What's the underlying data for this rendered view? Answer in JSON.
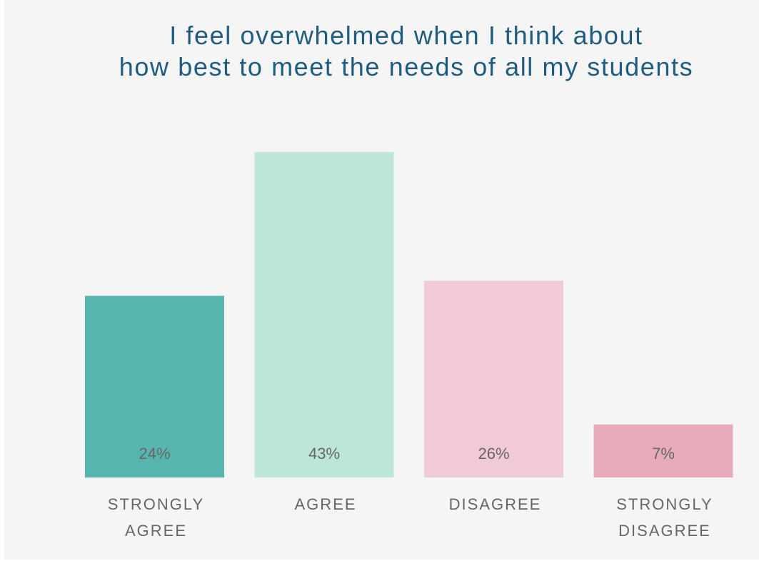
{
  "chart_data": {
    "type": "bar",
    "title_lines": [
      "I feel overwhelmed when I think about",
      "how best to meet the needs of all my students"
    ],
    "categories": [
      "STRONGLY\nAGREE",
      "AGREE",
      "DISAGREE",
      "STRONGLY\nDISAGREE"
    ],
    "values": [
      24,
      43,
      26,
      7
    ],
    "value_labels": [
      "24%",
      "43%",
      "26%",
      "7%"
    ],
    "unit": "%",
    "colors": [
      "#57b5b0",
      "#bde5d8",
      "#f0cbd6",
      "#e7aab9"
    ],
    "label_color": "#666666",
    "title_color": "#1f5c80",
    "background": "#f5f5f5",
    "ylim": [
      0,
      43
    ],
    "grid": false,
    "legend": "none"
  }
}
